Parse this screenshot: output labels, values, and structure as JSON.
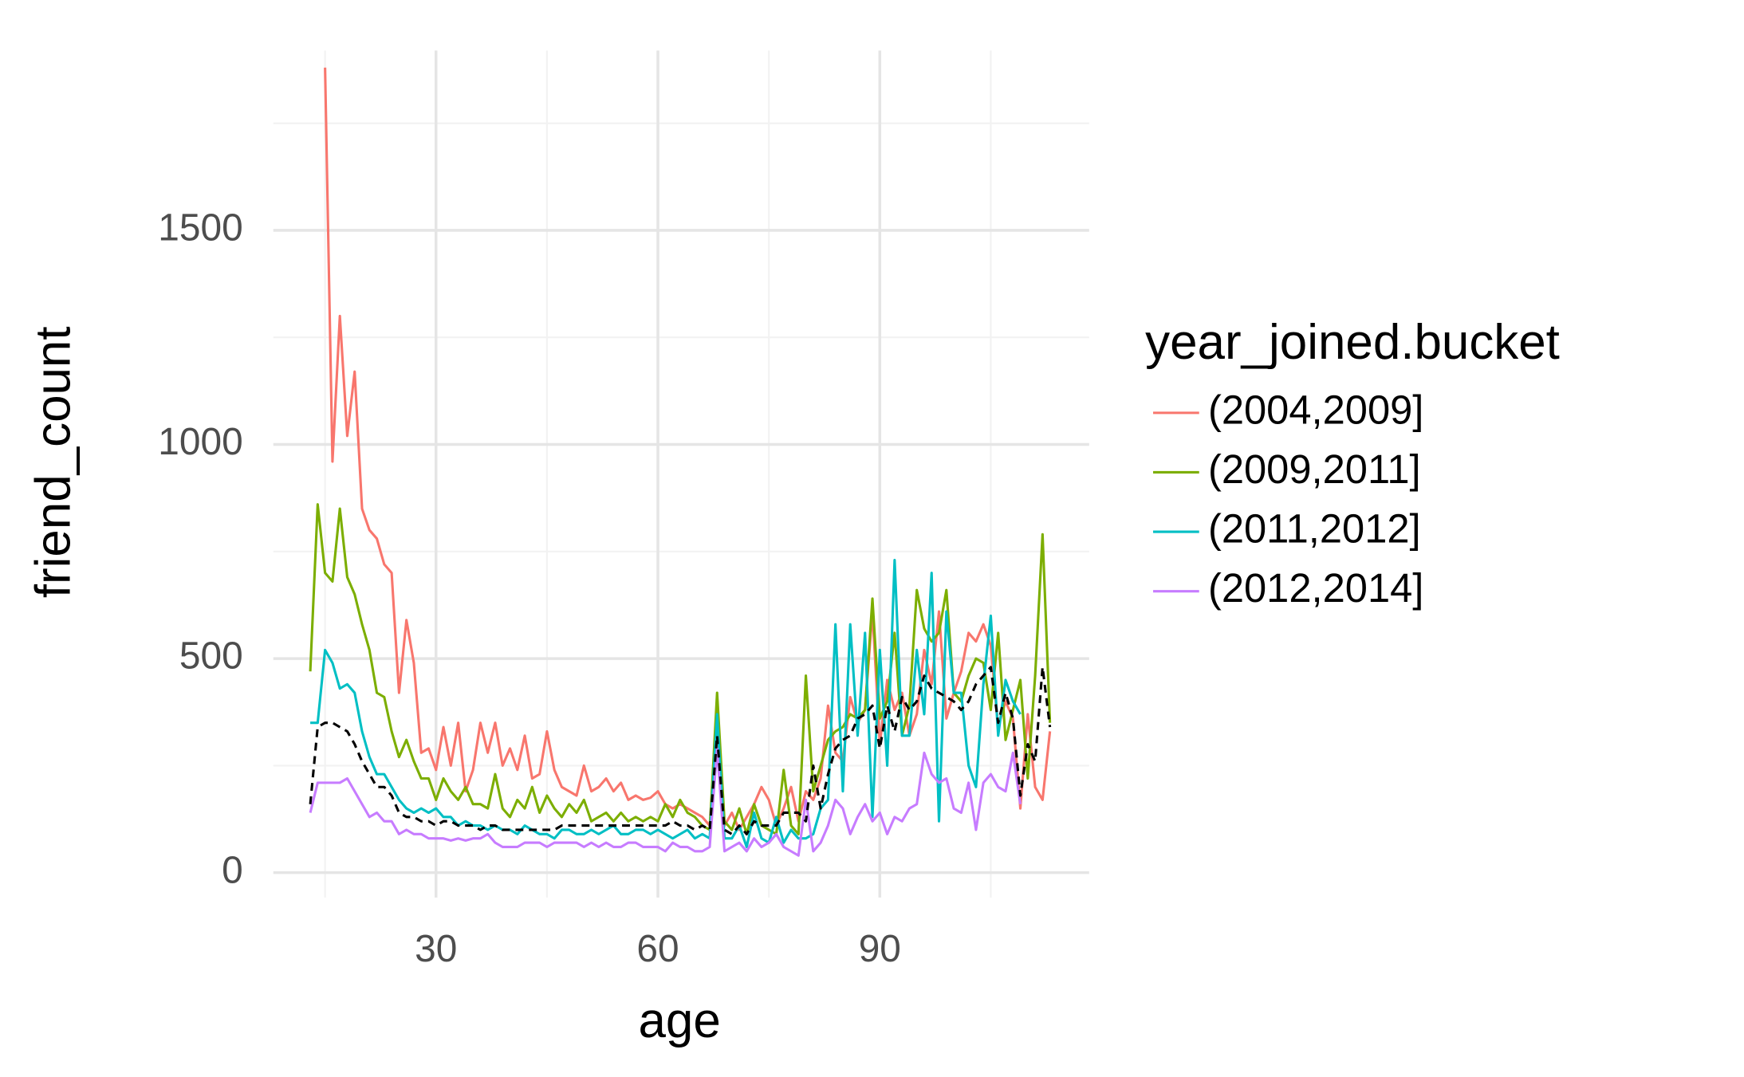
{
  "chart_data": {
    "type": "line",
    "x_label": "age",
    "y_label": "friend_count",
    "legend_title": "year_joined.bucket",
    "legend_position": "right",
    "xlim": [
      8,
      118.3
    ],
    "ylim": [
      -58,
      1920
    ],
    "xticks": [
      30,
      60,
      90
    ],
    "yticks": [
      0,
      500,
      1000,
      1500
    ],
    "x_minor_grid": [
      15,
      45,
      75,
      105
    ],
    "y_minor_grid": [
      250,
      750,
      1250,
      1750
    ],
    "grid": true,
    "x": [
      13,
      14,
      15,
      16,
      17,
      18,
      19,
      20,
      21,
      22,
      23,
      24,
      25,
      26,
      27,
      28,
      29,
      30,
      31,
      32,
      33,
      34,
      35,
      36,
      37,
      38,
      39,
      40,
      41,
      42,
      43,
      44,
      45,
      46,
      47,
      48,
      49,
      50,
      51,
      52,
      53,
      54,
      55,
      56,
      57,
      58,
      59,
      60,
      61,
      62,
      63,
      64,
      65,
      66,
      67,
      68,
      69,
      70,
      71,
      72,
      73,
      74,
      75,
      76,
      77,
      78,
      79,
      80,
      81,
      82,
      83,
      84,
      85,
      86,
      87,
      88,
      89,
      90,
      91,
      92,
      93,
      94,
      95,
      96,
      97,
      98,
      99,
      100,
      101,
      102,
      103,
      104,
      105,
      106,
      107,
      108,
      109,
      110,
      111,
      112,
      113
    ],
    "series": [
      {
        "name": "(2004,2009]",
        "color": "#f8766d",
        "values": [
          null,
          null,
          1880,
          960,
          1300,
          1020,
          1170,
          850,
          800,
          780,
          720,
          700,
          420,
          590,
          490,
          280,
          290,
          240,
          340,
          250,
          350,
          190,
          240,
          350,
          280,
          350,
          250,
          290,
          240,
          320,
          220,
          230,
          330,
          240,
          200,
          190,
          180,
          250,
          190,
          200,
          220,
          190,
          210,
          170,
          180,
          170,
          175,
          190,
          160,
          150,
          160,
          150,
          140,
          130,
          110,
          330,
          110,
          140,
          100,
          130,
          160,
          200,
          170,
          110,
          150,
          200,
          120,
          190,
          170,
          220,
          390,
          280,
          260,
          410,
          350,
          380,
          610,
          300,
          450,
          380,
          420,
          320,
          370,
          520,
          440,
          610,
          360,
          420,
          470,
          560,
          540,
          580,
          530,
          340,
          400,
          360,
          150,
          370,
          200,
          170,
          330
        ]
      },
      {
        "name": "(2009,2011]",
        "color": "#7cae00",
        "values": [
          470,
          860,
          700,
          680,
          850,
          690,
          650,
          580,
          520,
          420,
          410,
          330,
          270,
          310,
          260,
          220,
          220,
          170,
          220,
          190,
          170,
          200,
          160,
          160,
          150,
          230,
          150,
          130,
          170,
          150,
          200,
          140,
          180,
          150,
          130,
          160,
          140,
          170,
          120,
          130,
          140,
          120,
          140,
          120,
          130,
          120,
          130,
          120,
          160,
          130,
          170,
          140,
          130,
          110,
          100,
          420,
          120,
          100,
          150,
          90,
          160,
          110,
          100,
          90,
          240,
          110,
          90,
          460,
          190,
          250,
          310,
          330,
          340,
          370,
          360,
          380,
          640,
          360,
          400,
          560,
          320,
          390,
          660,
          570,
          540,
          560,
          660,
          420,
          400,
          460,
          500,
          490,
          380,
          560,
          310,
          380,
          450,
          220,
          460,
          790,
          350
        ]
      },
      {
        "name": "(2011,2012]",
        "color": "#00bfc4",
        "values": [
          350,
          350,
          520,
          490,
          430,
          440,
          420,
          330,
          270,
          230,
          230,
          200,
          170,
          150,
          140,
          150,
          140,
          150,
          130,
          130,
          110,
          120,
          110,
          110,
          100,
          110,
          100,
          100,
          90,
          110,
          100,
          90,
          90,
          80,
          100,
          100,
          90,
          90,
          100,
          90,
          100,
          110,
          90,
          90,
          100,
          100,
          90,
          100,
          90,
          80,
          90,
          100,
          80,
          90,
          80,
          370,
          80,
          80,
          110,
          60,
          140,
          80,
          70,
          130,
          70,
          100,
          80,
          80,
          90,
          150,
          170,
          580,
          190,
          580,
          320,
          560,
          130,
          520,
          250,
          730,
          320,
          320,
          520,
          370,
          700,
          120,
          610,
          420,
          420,
          250,
          200,
          440,
          600,
          320,
          450,
          400,
          370,
          null,
          null,
          null,
          null
        ]
      },
      {
        "name": "(2012,2014]",
        "color": "#c77cff",
        "values": [
          140,
          210,
          210,
          210,
          210,
          220,
          190,
          160,
          130,
          140,
          120,
          120,
          90,
          100,
          90,
          90,
          80,
          80,
          80,
          75,
          80,
          75,
          80,
          80,
          90,
          70,
          60,
          60,
          60,
          70,
          70,
          70,
          60,
          70,
          70,
          70,
          70,
          60,
          70,
          60,
          70,
          60,
          60,
          70,
          70,
          60,
          60,
          60,
          50,
          70,
          60,
          60,
          50,
          50,
          60,
          290,
          50,
          60,
          70,
          50,
          80,
          60,
          70,
          90,
          60,
          50,
          40,
          170,
          50,
          70,
          110,
          170,
          150,
          90,
          130,
          160,
          120,
          140,
          90,
          130,
          120,
          150,
          160,
          280,
          230,
          210,
          220,
          150,
          140,
          210,
          100,
          210,
          230,
          200,
          190,
          280,
          160,
          null,
          null,
          null,
          null
        ]
      },
      {
        "color": "#000000",
        "dashed": true,
        "values": [
          160,
          340,
          350,
          350,
          340,
          330,
          300,
          260,
          230,
          200,
          200,
          180,
          140,
          130,
          130,
          120,
          120,
          110,
          120,
          120,
          110,
          110,
          110,
          100,
          110,
          110,
          100,
          100,
          100,
          100,
          100,
          100,
          100,
          100,
          110,
          110,
          110,
          110,
          110,
          110,
          110,
          110,
          110,
          110,
          110,
          110,
          110,
          110,
          110,
          120,
          110,
          110,
          100,
          110,
          100,
          320,
          100,
          90,
          110,
          90,
          120,
          110,
          110,
          110,
          140,
          140,
          140,
          120,
          250,
          150,
          230,
          290,
          310,
          320,
          360,
          370,
          390,
          290,
          390,
          330,
          410,
          380,
          400,
          460,
          430,
          420,
          410,
          400,
          380,
          400,
          440,
          460,
          480,
          350,
          420,
          360,
          180,
          300,
          260,
          480,
          340
        ]
      }
    ]
  }
}
